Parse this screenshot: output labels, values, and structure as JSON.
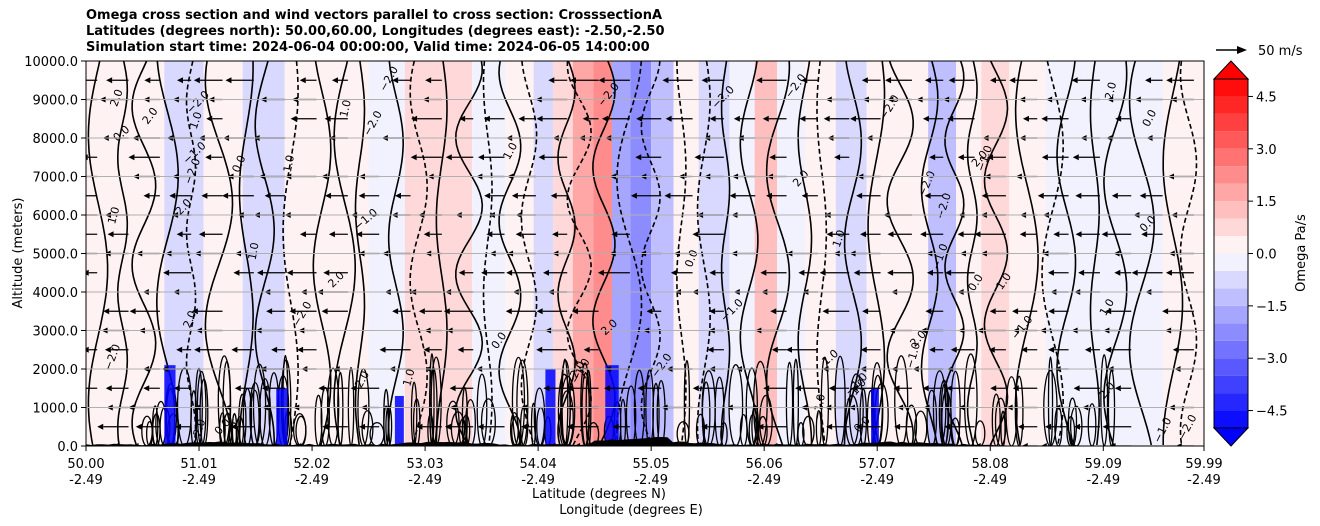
{
  "header": {
    "title_line1": "Omega cross section and wind vectors parallel to cross section: CrosssectionA",
    "title_line2": "Latitudes (degrees north): 50.00,60.00, Longitudes (degrees east): -2.50,-2.50",
    "title_line3": "Simulation start time: 2024-06-04 00:00:00, Valid time: 2024-06-05 14:00:00"
  },
  "chart_data": {
    "type": "heatmap",
    "xlabel_lat": "Latitude (degrees N)",
    "xlabel_lon": "Longitude (degrees E)",
    "ylabel": "Altitude (meters)",
    "ylim": [
      0,
      10000
    ],
    "xlim": [
      50.0,
      59.99
    ],
    "x_ticks": [
      {
        "lat": "50.00",
        "lon": "-2.49",
        "value": 50.0
      },
      {
        "lat": "51.01",
        "lon": "-2.49",
        "value": 51.01
      },
      {
        "lat": "52.02",
        "lon": "-2.49",
        "value": 52.02
      },
      {
        "lat": "53.03",
        "lon": "-2.49",
        "value": 53.03
      },
      {
        "lat": "54.04",
        "lon": "-2.49",
        "value": 54.04
      },
      {
        "lat": "55.05",
        "lon": "-2.49",
        "value": 55.05
      },
      {
        "lat": "56.06",
        "lon": "-2.49",
        "value": 56.06
      },
      {
        "lat": "57.07",
        "lon": "-2.49",
        "value": 57.07
      },
      {
        "lat": "58.08",
        "lon": "-2.49",
        "value": 58.08
      },
      {
        "lat": "59.09",
        "lon": "-2.49",
        "value": 59.09
      },
      {
        "lat": "59.99",
        "lon": "-2.49",
        "value": 59.99
      }
    ],
    "y_ticks": [
      "0.0",
      "1000.0",
      "2000.0",
      "3000.0",
      "4000.0",
      "5000.0",
      "6000.0",
      "7000.0",
      "8000.0",
      "9000.0",
      "10000.0"
    ],
    "grid": true,
    "colorbar": {
      "label": "Omega Pa/s",
      "range": [
        -5,
        5
      ],
      "ticks": [
        "4.5",
        "3.0",
        "1.5",
        "0.0",
        "−1.5",
        "−3.0",
        "−4.5"
      ],
      "tick_values": [
        4.5,
        3.0,
        1.5,
        0.0,
        -1.5,
        -3.0,
        -4.5
      ],
      "colormap": "bwr",
      "extend": "both"
    },
    "quiver_key": {
      "label": "50 m/s"
    },
    "omega_bands": [
      {
        "lat": 50.05,
        "value": 0.2
      },
      {
        "lat": 50.55,
        "value": 0.4
      },
      {
        "lat": 50.85,
        "value": -0.6
      },
      {
        "lat": 51.25,
        "value": 0.3
      },
      {
        "lat": 51.55,
        "value": -0.5
      },
      {
        "lat": 52.0,
        "value": 0.3
      },
      {
        "lat": 52.35,
        "value": 0.2
      },
      {
        "lat": 52.7,
        "value": -0.3
      },
      {
        "lat": 53.0,
        "value": 0.6
      },
      {
        "lat": 53.3,
        "value": 0.5
      },
      {
        "lat": 53.6,
        "value": -0.4
      },
      {
        "lat": 53.9,
        "value": 0.4
      },
      {
        "lat": 54.1,
        "value": -0.7
      },
      {
        "lat": 54.25,
        "value": 0.5
      },
      {
        "lat": 54.45,
        "value": 1.8
      },
      {
        "lat": 54.62,
        "value": 2.4
      },
      {
        "lat": 54.78,
        "value": -1.6
      },
      {
        "lat": 54.95,
        "value": -2.2
      },
      {
        "lat": 55.15,
        "value": -1.2
      },
      {
        "lat": 55.35,
        "value": 0.2
      },
      {
        "lat": 55.6,
        "value": -0.5
      },
      {
        "lat": 55.9,
        "value": -0.4
      },
      {
        "lat": 56.05,
        "value": 1.0
      },
      {
        "lat": 56.3,
        "value": -0.3
      },
      {
        "lat": 56.55,
        "value": 0.2
      },
      {
        "lat": 56.85,
        "value": -0.6
      },
      {
        "lat": 57.1,
        "value": 0.4
      },
      {
        "lat": 57.4,
        "value": 0.2
      },
      {
        "lat": 57.65,
        "value": -1.1
      },
      {
        "lat": 57.9,
        "value": 0.3
      },
      {
        "lat": 58.1,
        "value": 0.8
      },
      {
        "lat": 58.4,
        "value": 0.2
      },
      {
        "lat": 58.75,
        "value": -0.3
      },
      {
        "lat": 59.1,
        "value": -0.2
      },
      {
        "lat": 59.45,
        "value": -0.4
      },
      {
        "lat": 59.8,
        "value": 0.1
      }
    ],
    "contour_labels": [
      "0.0",
      "1.0",
      "−1.0",
      "2.0",
      "−2.0"
    ]
  }
}
